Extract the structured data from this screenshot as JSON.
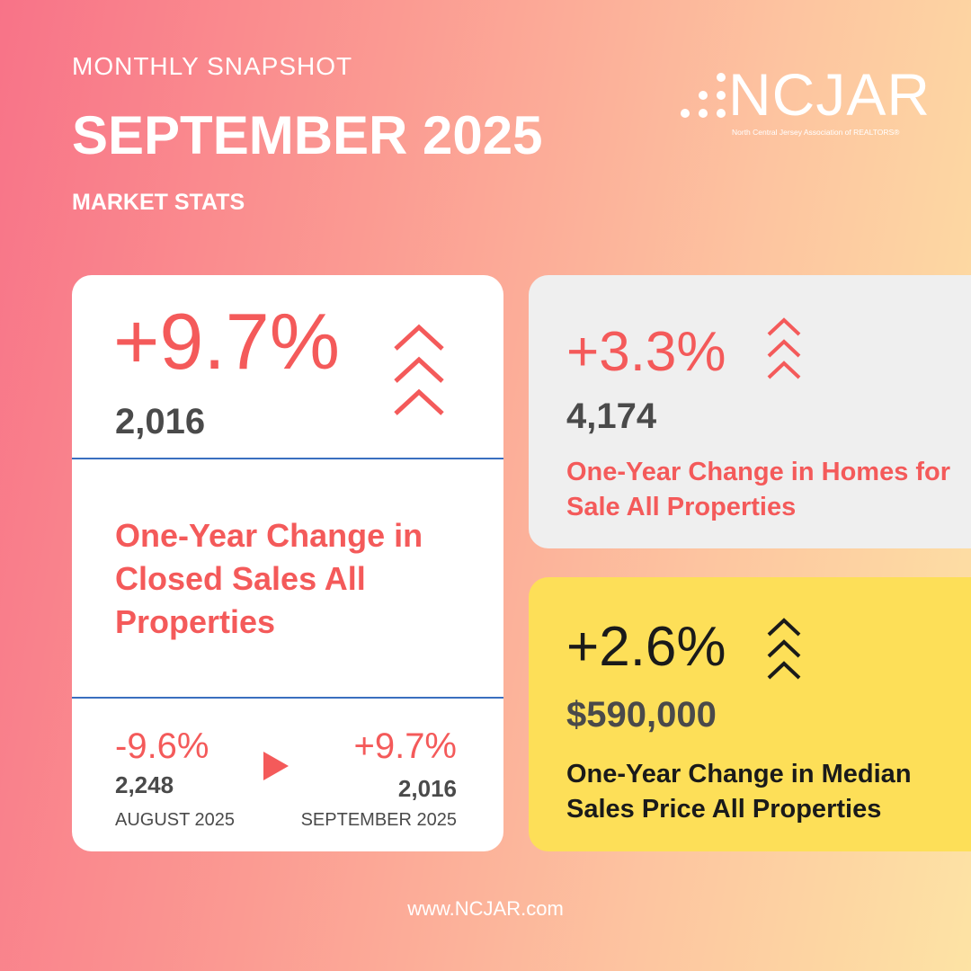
{
  "header": {
    "subtitle": "MONTHLY SNAPSHOT",
    "title": "SEPTEMBER 2025",
    "section": "MARKET STATS"
  },
  "logo": {
    "name": "NCJAR",
    "tagline": "North Central Jersey  Association of REALTORS®"
  },
  "closed_sales": {
    "change": "+9.7%",
    "value": "2,016",
    "description": "One-Year Change in Closed Sales All Properties",
    "previous": {
      "change": "-9.6%",
      "value": "2,248",
      "period": "AUGUST 2025"
    },
    "current": {
      "change": "+9.7%",
      "value": "2,016",
      "period": "SEPTEMBER 2025"
    }
  },
  "homes_for_sale": {
    "change": "+3.3%",
    "value": "4,174",
    "description": "One-Year Change in Homes for Sale All Properties"
  },
  "median_price": {
    "change": "+2.6%",
    "value": "$590,000",
    "description": "One-Year Change in Median Sales Price All Properties"
  },
  "footer": {
    "url": "www.NCJAR.com"
  },
  "colors": {
    "accent": "#f45a5a",
    "dark": "#4a4a4a",
    "yellow": "#fddf58",
    "divider": "#3a6fbf"
  }
}
